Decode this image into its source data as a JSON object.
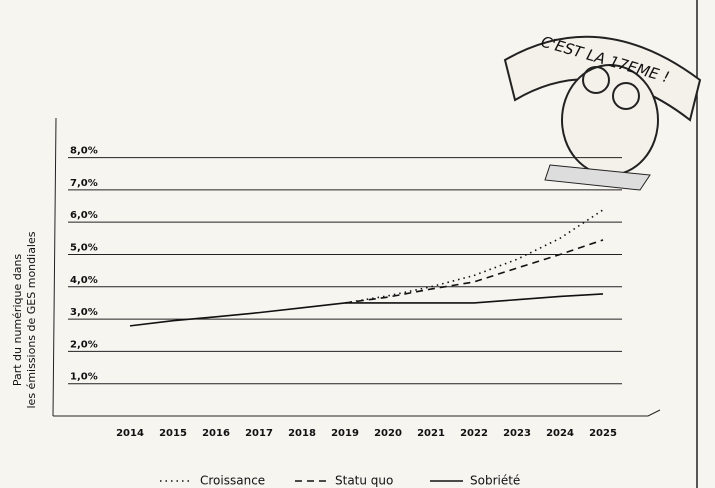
{
  "chart_data": {
    "type": "line",
    "y_label": [
      "Part du numérique dans",
      "les émissions de GES mondiales"
    ],
    "annotation": "C'EST LA 17EME !",
    "categories": [
      "2014",
      "2015",
      "2016",
      "2017",
      "2018",
      "2019",
      "2020",
      "2021",
      "2022",
      "2023",
      "2024",
      "2025"
    ],
    "series": [
      {
        "name": "Croissance",
        "color": "#111111",
        "dash": "dotted",
        "values": [
          null,
          null,
          null,
          null,
          null,
          3.5,
          3.72,
          4.0,
          4.35,
          4.85,
          5.5,
          6.38
        ]
      },
      {
        "name": "Statu quo",
        "color": "#111111",
        "dash": "dashed",
        "values": [
          null,
          null,
          null,
          null,
          null,
          3.5,
          3.68,
          3.93,
          4.15,
          4.58,
          5.0,
          5.45
        ]
      },
      {
        "name": "Sobriété",
        "color": "#111111",
        "dash": "solid",
        "values": [
          2.79,
          2.95,
          3.07,
          3.2,
          3.35,
          3.5,
          3.5,
          3.5,
          3.5,
          3.6,
          3.7,
          3.78
        ]
      }
    ],
    "ylim": [
      0,
      9.2
    ],
    "yticks": [
      {
        "value": 1,
        "label": "1,0%"
      },
      {
        "value": 2,
        "label": "2,0%"
      },
      {
        "value": 3,
        "label": "3,0%"
      },
      {
        "value": 4,
        "label": "4,0%"
      },
      {
        "value": 5,
        "label": "5,0%"
      },
      {
        "value": 6,
        "label": "6,0%"
      },
      {
        "value": 7,
        "label": "7,0%"
      },
      {
        "value": 8,
        "label": "8,0%"
      }
    ],
    "grid": true,
    "legend": "bottom"
  }
}
